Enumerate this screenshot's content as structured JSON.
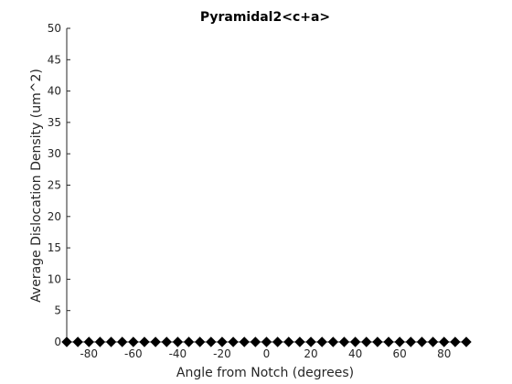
{
  "chart_data": {
    "type": "scatter",
    "title": "Pyramidal2<c+a>",
    "xlabel": "Angle from Notch (degrees)",
    "ylabel": "Average Dislocation Density (um^2)",
    "xlim": [
      -90,
      90
    ],
    "ylim": [
      0,
      50
    ],
    "xticks": [
      -80,
      -60,
      -40,
      -20,
      0,
      20,
      40,
      60,
      80
    ],
    "yticks": [
      0,
      5,
      10,
      15,
      20,
      25,
      30,
      35,
      40,
      45,
      50
    ],
    "grid": false,
    "series": [
      {
        "marker": "diamond",
        "color": "#000000",
        "x": [
          -90,
          -85,
          -80,
          -75,
          -70,
          -65,
          -60,
          -55,
          -50,
          -45,
          -40,
          -35,
          -30,
          -25,
          -20,
          -15,
          -10,
          -5,
          0,
          5,
          10,
          15,
          20,
          25,
          30,
          35,
          40,
          45,
          50,
          55,
          60,
          65,
          70,
          75,
          80,
          85,
          90
        ],
        "y": [
          0,
          0,
          0,
          0,
          0,
          0,
          0,
          0,
          0,
          0,
          0,
          0,
          0,
          0,
          0,
          0,
          0,
          0,
          0,
          0,
          0,
          0,
          0,
          0,
          0,
          0,
          0,
          0,
          0,
          0,
          0,
          0,
          0,
          0,
          0,
          0,
          0
        ]
      }
    ]
  }
}
